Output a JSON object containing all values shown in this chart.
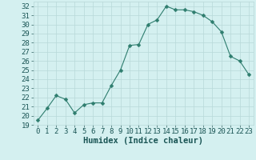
{
  "x": [
    0,
    1,
    2,
    3,
    4,
    5,
    6,
    7,
    8,
    9,
    10,
    11,
    12,
    13,
    14,
    15,
    16,
    17,
    18,
    19,
    20,
    21,
    22,
    23
  ],
  "y": [
    19.5,
    20.8,
    22.2,
    21.8,
    20.3,
    21.2,
    21.4,
    21.4,
    23.3,
    25.0,
    27.7,
    27.8,
    30.0,
    30.5,
    32.0,
    31.6,
    31.6,
    31.4,
    31.0,
    30.3,
    29.2,
    26.5,
    26.0,
    24.5
  ],
  "line_color": "#2e7d6e",
  "marker": "D",
  "marker_size": 2.5,
  "bg_color": "#d4f0f0",
  "grid_color": "#b8d8d8",
  "grid_major_color": "#c8d8d0",
  "xlabel": "Humidex (Indice chaleur)",
  "ylim": [
    19,
    32.5
  ],
  "xlim": [
    -0.5,
    23.5
  ],
  "yticks": [
    19,
    20,
    21,
    22,
    23,
    24,
    25,
    26,
    27,
    28,
    29,
    30,
    31,
    32
  ],
  "xticks": [
    0,
    1,
    2,
    3,
    4,
    5,
    6,
    7,
    8,
    9,
    10,
    11,
    12,
    13,
    14,
    15,
    16,
    17,
    18,
    19,
    20,
    21,
    22,
    23
  ],
  "tick_color": "#2e6060",
  "label_color": "#1a5555",
  "font_size": 6.5,
  "xlabel_fontsize": 7.5
}
